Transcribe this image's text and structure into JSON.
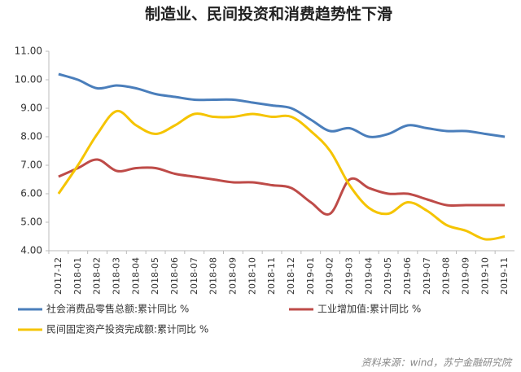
{
  "chart_data": {
    "type": "line",
    "title": "制造业、民间投资和消费趋势性下滑",
    "source": "资料来源：wind，苏宁金融研究院",
    "categories": [
      "2017-12",
      "2018-01",
      "2018-02",
      "2018-03",
      "2018-04",
      "2018-05",
      "2018-06",
      "2018-07",
      "2018-08",
      "2018-09",
      "2018-10",
      "2018-11",
      "2018-12",
      "2019-01",
      "2019-02",
      "2019-03",
      "2019-04",
      "2019-05",
      "2019-06",
      "2019-07",
      "2019-08",
      "2019-09",
      "2019-10",
      "2019-11"
    ],
    "series": [
      {
        "name": "社会消费品零售总额:累计同比 %",
        "color": "#4a7ebb",
        "values": [
          10.2,
          10.0,
          9.7,
          9.8,
          9.7,
          9.5,
          9.4,
          9.3,
          9.3,
          9.3,
          9.2,
          9.1,
          9.0,
          8.6,
          8.2,
          8.3,
          8.0,
          8.1,
          8.4,
          8.3,
          8.2,
          8.2,
          8.1,
          8.0
        ]
      },
      {
        "name": "工业增加值:累计同比 %",
        "color": "#be4b48",
        "values": [
          6.6,
          6.9,
          7.2,
          6.8,
          6.9,
          6.9,
          6.7,
          6.6,
          6.5,
          6.4,
          6.4,
          6.3,
          6.2,
          5.7,
          5.3,
          6.5,
          6.2,
          6.0,
          6.0,
          5.8,
          5.6,
          5.6,
          5.6,
          5.6
        ]
      },
      {
        "name": "民间固定资产投资完成额:累计同比 %",
        "color": "#f5c400",
        "values": [
          6.0,
          7.0,
          8.1,
          8.9,
          8.4,
          8.1,
          8.4,
          8.8,
          8.7,
          8.7,
          8.8,
          8.7,
          8.7,
          8.2,
          7.5,
          6.3,
          5.5,
          5.3,
          5.7,
          5.4,
          4.9,
          4.7,
          4.4,
          4.5
        ]
      }
    ],
    "ylim": [
      4,
      11
    ],
    "yticks": [
      {
        "value": 4,
        "label": "4.00"
      },
      {
        "value": 5,
        "label": "5.00"
      },
      {
        "value": 6,
        "label": "6.00"
      },
      {
        "value": 7,
        "label": "7.00"
      },
      {
        "value": 8,
        "label": "8.00"
      },
      {
        "value": 9,
        "label": "9.00"
      },
      {
        "value": 10,
        "label": "10.00"
      },
      {
        "value": 11,
        "label": "11.00"
      }
    ],
    "grid": false
  }
}
